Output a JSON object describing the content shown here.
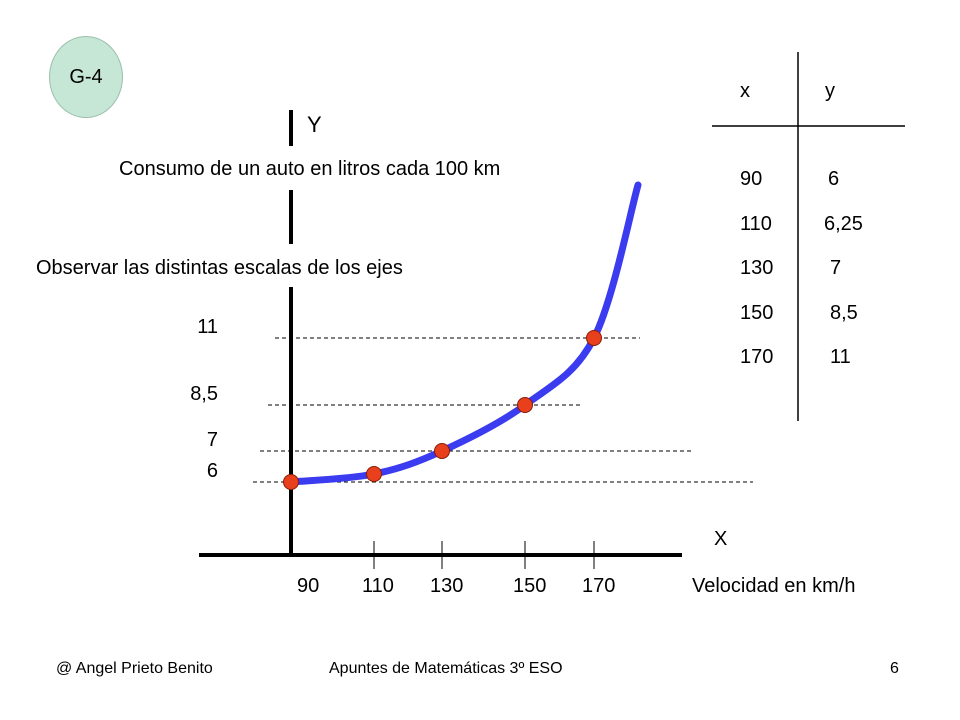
{
  "slide": {
    "badge": "G-4",
    "footer_left": "@ Angel Prieto Benito",
    "footer_center": "Apuntes de Matemáticas 3º ESO",
    "footer_right": "6"
  },
  "chart_data": {
    "type": "line",
    "title": "Consumo de un auto en litros cada 100 km",
    "subtitle": "Observar las distintas escalas de los ejes",
    "xlabel": "Velocidad en km/h",
    "x_axis_name": "X",
    "y_axis_name": "Y",
    "x": [
      90,
      110,
      130,
      150,
      170
    ],
    "y": [
      6,
      6.25,
      7,
      8.5,
      11
    ],
    "x_tick_labels": [
      "90",
      "110",
      "130",
      "150",
      "170"
    ],
    "y_tick_labels": [
      "11",
      "8,5",
      "7",
      "6"
    ],
    "curve_color": "#3b3bf0",
    "point_color": "#e8401c"
  },
  "table": {
    "headers": [
      "x",
      "y"
    ],
    "rows": [
      [
        "90",
        "6"
      ],
      [
        "110",
        "6,25"
      ],
      [
        "130",
        "7"
      ],
      [
        "150",
        "8,5"
      ],
      [
        "170",
        "11"
      ]
    ]
  }
}
